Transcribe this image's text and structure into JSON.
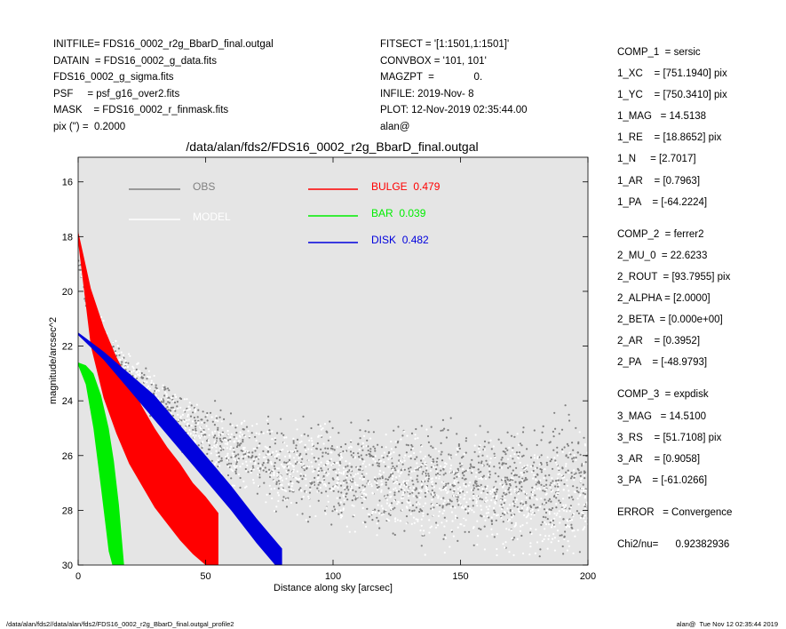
{
  "header_left": [
    "INITFILE= FDS16_0002_r2g_BbarD_final.outgal",
    "DATAIN  = FDS16_0002_g_data.fits",
    "FDS16_0002_g_sigma.fits",
    "PSF     = psf_g16_over2.fits",
    "MASK    = FDS16_0002_r_finmask.fits",
    "pix (\") =  0.2000"
  ],
  "header_mid": [
    "FITSECT = '[1:1501,1:1501]'",
    "CONVBOX = '101, 101'",
    "MAGZPT  =              0.",
    "INFILE: 2019-Nov- 8",
    "PLOT: 12-Nov-2019 02:35:44.00",
    "alan@"
  ],
  "components": [
    {
      "lines": [
        "COMP_1  = sersic",
        "1_XC    = [751.1940] pix",
        "1_YC    = [750.3410] pix",
        "1_MAG   = 14.5138",
        "1_RE    = [18.8652] pix",
        "1_N     = [2.7017]",
        "1_AR    = [0.7963]",
        "1_PA    = [-64.2224]"
      ]
    },
    {
      "lines": [
        "COMP_2  = ferrer2",
        "2_MU_0  = 22.6233",
        "2_ROUT  = [93.7955] pix",
        "2_ALPHA = [2.0000]",
        "2_BETA  = [0.000e+00]",
        "2_AR    = [0.3952]",
        "2_PA    = [-48.9793]"
      ]
    },
    {
      "lines": [
        "COMP_3  = expdisk",
        "3_MAG   = 14.5100",
        "3_RS    = [51.7108] pix",
        "3_AR    = [0.9058]",
        "3_PA    = [-61.0266]"
      ]
    },
    {
      "lines": [
        "ERROR   = Convergence"
      ]
    },
    {
      "lines": [
        "Chi2/nu=      0.92382936"
      ]
    }
  ],
  "footer_left": "/data/alan/fds2//data/alan/fds2/FDS16_0002_r2g_BbarD_final.outgal_profile2",
  "footer_right": "alan@  Tue Nov 12 02:35:44 2019",
  "colors": {
    "plot_bg": "#e5e5e5",
    "obs": "#808080",
    "model": "#ffffff",
    "bulge": "#ff0000",
    "bar": "#00ee00",
    "disk": "#0000dd"
  },
  "chart_data": {
    "type": "scatter",
    "title": "/data/alan/fds2/FDS16_0002_r2g_BbarD_final.outgal",
    "xlabel": "Distance along sky [arcsec]",
    "ylabel": "magnitude/arcsec^2",
    "xlim": [
      0,
      200
    ],
    "ylim": [
      30,
      15.1
    ],
    "y_inverted": true,
    "xticks": [
      0,
      50,
      100,
      150,
      200
    ],
    "yticks": [
      16,
      18,
      20,
      22,
      24,
      26,
      28,
      30
    ],
    "grid": false,
    "legend_left": [
      {
        "name": "OBS",
        "color": "#808080"
      },
      {
        "name": "MODEL",
        "color": "#ffffff"
      }
    ],
    "legend_right": [
      {
        "name": "BULGE",
        "value": "0.479",
        "color": "#ff0000"
      },
      {
        "name": "BAR",
        "value": "0.039",
        "color": "#00ee00"
      },
      {
        "name": "DISK",
        "value": "0.482",
        "color": "#0000dd"
      }
    ],
    "series": [
      {
        "name": "BULGE",
        "color": "#ff0000",
        "kind": "band",
        "x": [
          0,
          5,
          10,
          15,
          20,
          25,
          30,
          35,
          40,
          45,
          50,
          55
        ],
        "y_bright": [
          17.8,
          19.9,
          21.3,
          22.4,
          23.3,
          24.2,
          25.0,
          25.7,
          26.3,
          27.0,
          27.5,
          28.1
        ],
        "y_faint": [
          18.2,
          22.0,
          23.9,
          25.2,
          26.3,
          27.1,
          27.9,
          28.5,
          29.1,
          29.6,
          30.0,
          30.4
        ]
      },
      {
        "name": "DISK",
        "color": "#0000dd",
        "kind": "band",
        "x": [
          0,
          10,
          20,
          30,
          40,
          50,
          60,
          70,
          80
        ],
        "y_bright": [
          21.5,
          22.2,
          23.0,
          23.8,
          24.9,
          26.0,
          27.1,
          28.3,
          29.4
        ],
        "y_faint": [
          21.6,
          22.5,
          23.6,
          24.7,
          25.8,
          26.9,
          28.0,
          29.2,
          30.3
        ]
      },
      {
        "name": "BAR",
        "color": "#00ee00",
        "kind": "band",
        "x": [
          0,
          3,
          6,
          9,
          12,
          14,
          16,
          18
        ],
        "y_bright": [
          22.6,
          22.7,
          23.0,
          23.8,
          25.0,
          26.2,
          27.8,
          30.0
        ],
        "y_faint": [
          22.7,
          23.4,
          25.0,
          27.2,
          29.5,
          30.2,
          30.4,
          30.5
        ]
      },
      {
        "name": "OBS",
        "color": "#808080",
        "kind": "cloud",
        "x": [
          0,
          5,
          10,
          15,
          20,
          30,
          40,
          50,
          60,
          70,
          80,
          100,
          120,
          140,
          160,
          180,
          200
        ],
        "y_center": [
          19.0,
          20.9,
          21.8,
          22.5,
          23.1,
          24.0,
          24.7,
          25.3,
          25.7,
          26.0,
          26.3,
          26.6,
          26.8,
          26.9,
          27.0,
          27.0,
          27.1
        ],
        "y_spread": [
          0.3,
          0.3,
          0.4,
          0.4,
          0.5,
          0.6,
          0.7,
          0.9,
          1.0,
          1.1,
          1.2,
          1.3,
          1.4,
          1.5,
          1.6,
          1.7,
          1.8
        ]
      },
      {
        "name": "MODEL",
        "color": "#ffffff",
        "kind": "cloud",
        "x": [
          0,
          5,
          10,
          15,
          20,
          30,
          40,
          50,
          60,
          70,
          80,
          100,
          120,
          140,
          160,
          180,
          200
        ],
        "y_center": [
          18.9,
          20.7,
          21.6,
          22.3,
          22.9,
          23.8,
          24.6,
          25.3,
          25.8,
          26.1,
          26.4,
          26.8,
          27.1,
          27.3,
          27.5,
          27.7,
          27.9
        ],
        "y_spread": [
          0.3,
          0.3,
          0.4,
          0.4,
          0.5,
          0.6,
          0.7,
          0.8,
          1.0,
          1.1,
          1.2,
          1.3,
          1.4,
          1.5,
          1.6,
          1.6,
          1.7
        ]
      }
    ]
  }
}
